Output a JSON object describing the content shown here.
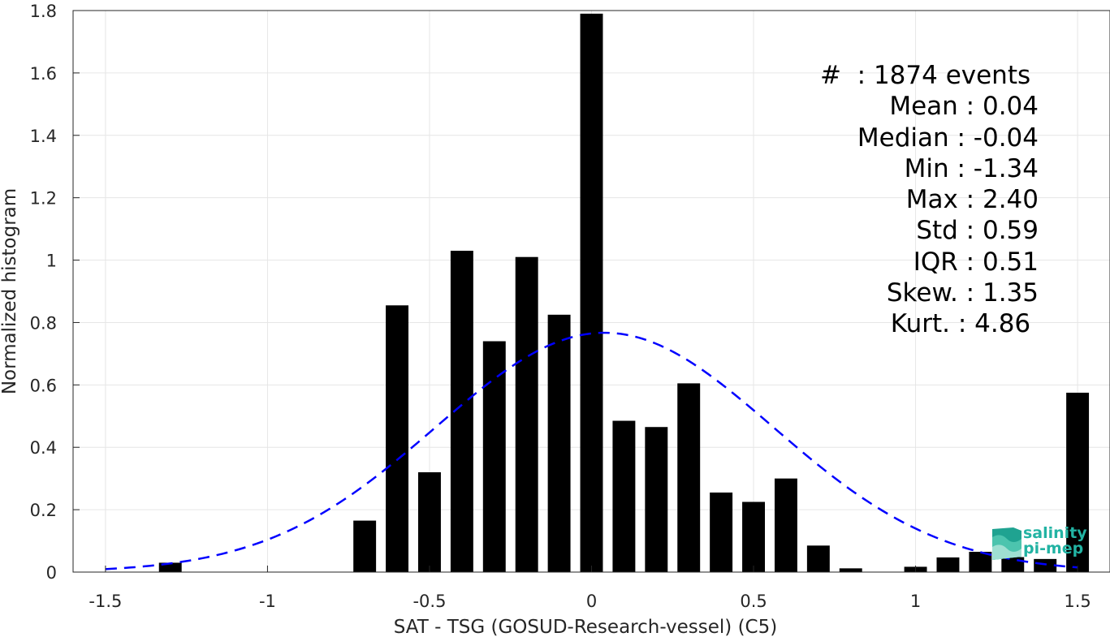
{
  "chart_data": {
    "type": "bar",
    "xlabel": "SAT - TSG (GOSUD-Research-vessel) (C5)",
    "ylabel": "Normalized histogram",
    "xlim": [
      -1.6,
      1.6
    ],
    "ylim": [
      0,
      1.8
    ],
    "grid": true,
    "xticks": [
      -1.5,
      -1,
      -0.5,
      0,
      0.5,
      1,
      1.5
    ],
    "xtick_labels": [
      "-1.5",
      "-1",
      "-0.5",
      "0",
      "0.5",
      "1",
      "1.5"
    ],
    "yticks": [
      0,
      0.2,
      0.4,
      0.6,
      0.8,
      1,
      1.2,
      1.4,
      1.6,
      1.8
    ],
    "ytick_labels": [
      "0",
      "0.2",
      "0.4",
      "0.6",
      "0.8",
      "1",
      "1.2",
      "1.4",
      "1.6",
      "1.8"
    ],
    "bar_width": 0.07,
    "bars": [
      {
        "x": -1.3,
        "y": 0.03
      },
      {
        "x": -0.7,
        "y": 0.165
      },
      {
        "x": -0.6,
        "y": 0.855
      },
      {
        "x": -0.5,
        "y": 0.32
      },
      {
        "x": -0.4,
        "y": 1.03
      },
      {
        "x": -0.3,
        "y": 0.74
      },
      {
        "x": -0.2,
        "y": 1.01
      },
      {
        "x": -0.1,
        "y": 0.825
      },
      {
        "x": 0.0,
        "y": 1.79
      },
      {
        "x": 0.1,
        "y": 0.485
      },
      {
        "x": 0.2,
        "y": 0.465
      },
      {
        "x": 0.3,
        "y": 0.605
      },
      {
        "x": 0.4,
        "y": 0.255
      },
      {
        "x": 0.5,
        "y": 0.225
      },
      {
        "x": 0.6,
        "y": 0.3
      },
      {
        "x": 0.7,
        "y": 0.085
      },
      {
        "x": 0.8,
        "y": 0.012
      },
      {
        "x": 1.0,
        "y": 0.017
      },
      {
        "x": 1.1,
        "y": 0.047
      },
      {
        "x": 1.2,
        "y": 0.065
      },
      {
        "x": 1.3,
        "y": 0.048
      },
      {
        "x": 1.4,
        "y": 0.042
      },
      {
        "x": 1.5,
        "y": 0.575
      }
    ],
    "fit_curve": {
      "kind": "gaussian",
      "mean": 0.04,
      "std": 0.52,
      "x_range": [
        -1.5,
        1.5
      ],
      "color": "#0000ff",
      "dashed": true
    },
    "bar_color": "#000000"
  },
  "stats": [
    "#  : 1874 events ",
    "Mean : 0.04",
    "Median : -0.04",
    "Min : -1.34",
    "Max : 2.40",
    "Std : 0.59",
    "IQR : 0.51",
    "Skew. : 1.35",
    "Kurt. : 4.86 "
  ],
  "logo": {
    "line1": "salinity",
    "line2": "pi-mep",
    "color": "#22b3a3"
  }
}
